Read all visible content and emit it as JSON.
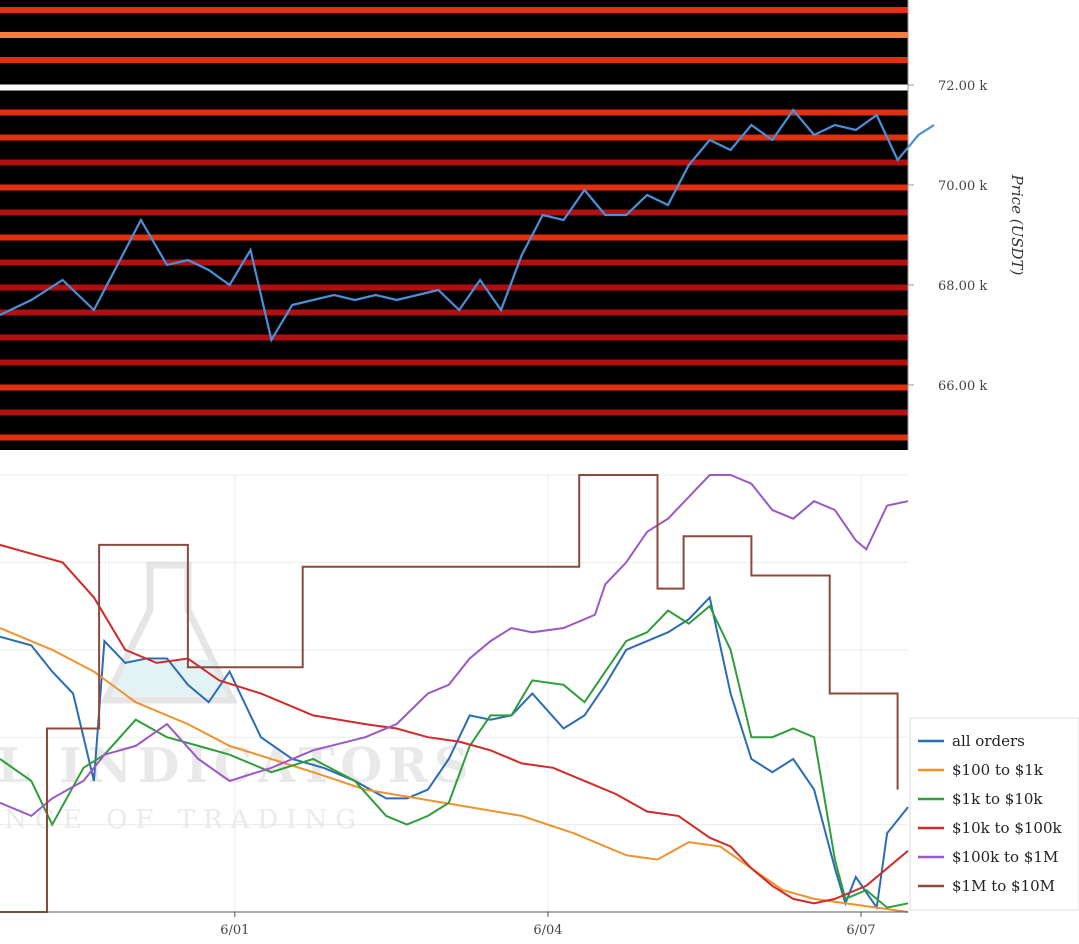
{
  "chart_data": [
    {
      "type": "heatmap",
      "ylabel": "Price (USDT)",
      "yticks": [
        "66.00 k",
        "68.00 k",
        "70.00 k",
        "72.00 k"
      ],
      "ytick_values": [
        66000,
        68000,
        70000,
        72000
      ],
      "ylim": [
        64700,
        73700
      ],
      "price_line_color": "#4a90d9",
      "price_series": {
        "x_days": [
          0,
          0.3,
          0.6,
          0.9,
          1.1,
          1.35,
          1.6,
          1.8,
          2.0,
          2.2,
          2.4,
          2.6,
          2.8,
          3.0,
          3.2,
          3.4,
          3.6,
          3.8,
          4.0,
          4.2,
          4.4,
          4.6,
          4.8,
          5.0,
          5.2,
          5.4,
          5.6,
          5.8,
          6.0,
          6.2,
          6.4,
          6.6,
          6.8,
          7.0,
          7.2,
          7.4,
          7.6,
          7.8,
          8.0,
          8.2,
          8.4,
          8.6,
          8.8,
          8.95
        ],
        "y": [
          67400,
          67700,
          68100,
          67500,
          68300,
          69300,
          68400,
          68500,
          68300,
          68000,
          68700,
          66900,
          67600,
          67700,
          67800,
          67700,
          67800,
          67700,
          67800,
          67900,
          67500,
          68100,
          67500,
          68600,
          69400,
          69300,
          69900,
          69400,
          69400,
          69800,
          69600,
          70400,
          70900,
          70700,
          71200,
          70900,
          71500,
          71000,
          71200,
          71100,
          71400,
          70500,
          71000,
          71200
        ]
      },
      "colorscale": [
        "#000000",
        "#5a0000",
        "#b01010",
        "#e03010",
        "#f08040",
        "#ffd040",
        "#ffffff"
      ],
      "heat_bands": [
        {
          "price": 73500,
          "intensity": 0.45
        },
        {
          "price": 73000,
          "intensity": 0.6
        },
        {
          "price": 72500,
          "intensity": 0.55
        },
        {
          "price": 71950,
          "intensity": 1.0
        },
        {
          "price": 71450,
          "intensity": 0.5
        },
        {
          "price": 70950,
          "intensity": 0.55
        },
        {
          "price": 70450,
          "intensity": 0.4
        },
        {
          "price": 69950,
          "intensity": 0.45
        },
        {
          "price": 69450,
          "intensity": 0.35
        },
        {
          "price": 68950,
          "intensity": 0.5
        },
        {
          "price": 68450,
          "intensity": 0.35
        },
        {
          "price": 67950,
          "intensity": 0.4
        },
        {
          "price": 67450,
          "intensity": 0.35
        },
        {
          "price": 66950,
          "intensity": 0.4
        },
        {
          "price": 66450,
          "intensity": 0.35
        },
        {
          "price": 65950,
          "intensity": 0.45
        },
        {
          "price": 65450,
          "intensity": 0.3
        },
        {
          "price": 64950,
          "intensity": 0.45
        }
      ]
    },
    {
      "type": "line",
      "x_tick_labels": [
        "6/01",
        "6/04",
        "6/07"
      ],
      "x_tick_days": [
        2.25,
        5.25,
        8.25
      ],
      "xlim": [
        0,
        8.7
      ],
      "ylim": [
        0,
        1
      ],
      "grid": true,
      "legend_position": "right",
      "series": [
        {
          "name": "all orders",
          "color": "#2a6db5",
          "x": [
            0,
            0.3,
            0.5,
            0.7,
            0.9,
            1.0,
            1.2,
            1.4,
            1.6,
            1.8,
            2.0,
            2.2,
            2.5,
            2.8,
            3.1,
            3.4,
            3.7,
            3.9,
            4.1,
            4.3,
            4.5,
            4.7,
            4.9,
            5.1,
            5.4,
            5.6,
            5.8,
            6.0,
            6.2,
            6.4,
            6.6,
            6.8,
            7.0,
            7.2,
            7.4,
            7.6,
            7.8,
            8.0,
            8.1,
            8.2,
            8.4,
            8.5,
            8.7
          ],
          "y": [
            0.63,
            0.61,
            0.55,
            0.5,
            0.3,
            0.62,
            0.57,
            0.58,
            0.58,
            0.52,
            0.48,
            0.55,
            0.4,
            0.35,
            0.33,
            0.3,
            0.26,
            0.26,
            0.28,
            0.35,
            0.45,
            0.44,
            0.45,
            0.5,
            0.42,
            0.45,
            0.52,
            0.6,
            0.62,
            0.64,
            0.67,
            0.72,
            0.5,
            0.35,
            0.32,
            0.35,
            0.28,
            0.1,
            0.02,
            0.08,
            0.01,
            0.18,
            0.24
          ]
        },
        {
          "name": "$100 to $1k",
          "color": "#f0922e",
          "x": [
            0,
            0.5,
            0.9,
            1.3,
            1.8,
            2.2,
            2.6,
            3.0,
            3.5,
            4.0,
            4.5,
            5.0,
            5.5,
            6.0,
            6.3,
            6.6,
            6.9,
            7.2,
            7.5,
            7.8,
            8.1,
            8.4,
            8.7
          ],
          "y": [
            0.65,
            0.6,
            0.55,
            0.48,
            0.43,
            0.38,
            0.35,
            0.32,
            0.28,
            0.26,
            0.24,
            0.22,
            0.18,
            0.13,
            0.12,
            0.16,
            0.15,
            0.1,
            0.05,
            0.03,
            0.02,
            0.01,
            0.0
          ]
        },
        {
          "name": "$1k to $10k",
          "color": "#2f9e3a",
          "x": [
            0,
            0.3,
            0.5,
            0.8,
            1.0,
            1.3,
            1.6,
            1.9,
            2.2,
            2.6,
            3.0,
            3.4,
            3.7,
            3.9,
            4.1,
            4.3,
            4.5,
            4.7,
            4.9,
            5.1,
            5.4,
            5.6,
            5.8,
            6.0,
            6.2,
            6.4,
            6.6,
            6.8,
            7.0,
            7.2,
            7.4,
            7.6,
            7.8,
            8.0,
            8.1,
            8.3,
            8.5,
            8.7
          ],
          "y": [
            0.35,
            0.3,
            0.2,
            0.33,
            0.36,
            0.44,
            0.4,
            0.38,
            0.36,
            0.32,
            0.35,
            0.3,
            0.22,
            0.2,
            0.22,
            0.25,
            0.38,
            0.45,
            0.45,
            0.53,
            0.52,
            0.48,
            0.55,
            0.62,
            0.64,
            0.69,
            0.66,
            0.7,
            0.6,
            0.4,
            0.4,
            0.42,
            0.4,
            0.12,
            0.03,
            0.05,
            0.01,
            0.02
          ]
        },
        {
          "name": "$10k to $100k",
          "color": "#d02a2a",
          "x": [
            0,
            0.3,
            0.6,
            0.9,
            1.2,
            1.5,
            1.8,
            2.1,
            2.5,
            3.0,
            3.5,
            3.8,
            4.1,
            4.4,
            4.7,
            5.0,
            5.3,
            5.6,
            5.9,
            6.2,
            6.5,
            6.8,
            7.0,
            7.2,
            7.4,
            7.6,
            7.8,
            8.0,
            8.1,
            8.3,
            8.5,
            8.7
          ],
          "y": [
            0.84,
            0.82,
            0.8,
            0.72,
            0.6,
            0.57,
            0.58,
            0.53,
            0.5,
            0.45,
            0.43,
            0.42,
            0.4,
            0.39,
            0.37,
            0.34,
            0.33,
            0.3,
            0.27,
            0.23,
            0.22,
            0.17,
            0.15,
            0.1,
            0.06,
            0.03,
            0.02,
            0.03,
            0.04,
            0.06,
            0.1,
            0.14
          ]
        },
        {
          "name": "$100k to $1M",
          "color": "#9b59c6",
          "x": [
            0,
            0.3,
            0.5,
            0.8,
            1.0,
            1.3,
            1.6,
            1.9,
            2.2,
            2.6,
            3.0,
            3.5,
            3.8,
            4.1,
            4.3,
            4.5,
            4.7,
            4.9,
            5.1,
            5.4,
            5.7,
            5.8,
            6.0,
            6.2,
            6.4,
            6.6,
            6.8,
            7.0,
            7.2,
            7.4,
            7.6,
            7.8,
            8.0,
            8.2,
            8.3,
            8.4,
            8.5,
            8.7
          ],
          "y": [
            0.25,
            0.22,
            0.26,
            0.3,
            0.36,
            0.38,
            0.43,
            0.35,
            0.3,
            0.33,
            0.37,
            0.4,
            0.43,
            0.5,
            0.52,
            0.58,
            0.62,
            0.65,
            0.64,
            0.65,
            0.68,
            0.75,
            0.8,
            0.87,
            0.9,
            0.95,
            1.0,
            1.0,
            0.98,
            0.92,
            0.9,
            0.94,
            0.92,
            0.85,
            0.83,
            0.88,
            0.93,
            0.94
          ]
        },
        {
          "name": "$1M to $10M",
          "color": "#8b4a3c",
          "x": [
            0,
            0.45,
            0.45,
            0.95,
            0.95,
            1.8,
            1.8,
            2.9,
            2.9,
            5.55,
            5.55,
            6.3,
            6.3,
            6.55,
            6.55,
            7.2,
            7.2,
            7.95,
            7.95,
            8.6,
            8.6
          ],
          "y": [
            0.0,
            0.0,
            0.42,
            0.42,
            0.84,
            0.84,
            0.56,
            0.56,
            0.79,
            0.79,
            1.0,
            1.0,
            0.74,
            0.74,
            0.86,
            0.86,
            0.77,
            0.77,
            0.5,
            0.5,
            0.28
          ]
        }
      ]
    }
  ],
  "watermark": {
    "line1": "MATERIAL INDICATORS",
    "line2": "THE SCIENCE OF TRADING"
  }
}
